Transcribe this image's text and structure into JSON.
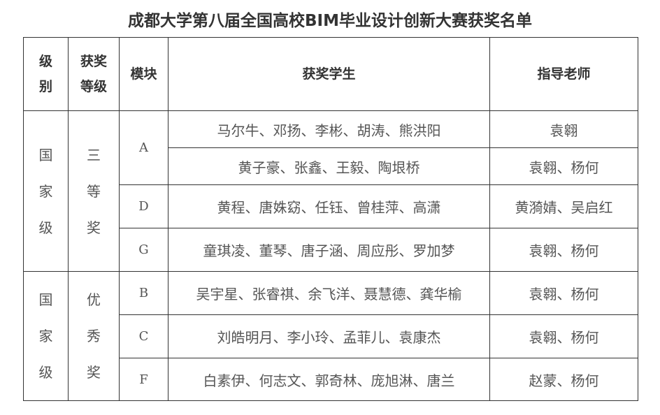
{
  "title": "成都大学第八届全国高校BIM毕业设计创新大赛获奖名单",
  "headers": {
    "level": "级别",
    "award": "获奖等级",
    "module": "模块",
    "students": "获奖学生",
    "advisors": "指导老师"
  },
  "groups": [
    {
      "level": "国家级",
      "award": "三等奖",
      "rows": [
        {
          "module": "A",
          "students": "马尔牛、邓扬、李彬、胡涛、熊洪阳",
          "advisors": "袁翱"
        },
        {
          "module": "A",
          "students": "黄子豪、张鑫、王毅、陶垠桥",
          "advisors": "袁翱、杨何"
        },
        {
          "module": "D",
          "students": "黄程、唐姝窈、任钰、曾桂萍、高潇",
          "advisors": "黄漪婧、吴启红"
        },
        {
          "module": "G",
          "students": "童琪凌、董琴、唐子涵、周应彤、罗加梦",
          "advisors": "袁翱、杨何"
        }
      ]
    },
    {
      "level": "国家级",
      "award": "优秀奖",
      "rows": [
        {
          "module": "B",
          "students": "吴宇星、张睿祺、余飞洋、聂慧德、龚华榆",
          "advisors": "袁翱、杨何"
        },
        {
          "module": "C",
          "students": "刘皓明月、李小玲、孟菲儿、袁康杰",
          "advisors": "袁翱、杨何"
        },
        {
          "module": "F",
          "students": "白素伊、何志文、郭奇林、庞旭淋、唐兰",
          "advisors": "赵蒙、杨何"
        }
      ]
    }
  ]
}
